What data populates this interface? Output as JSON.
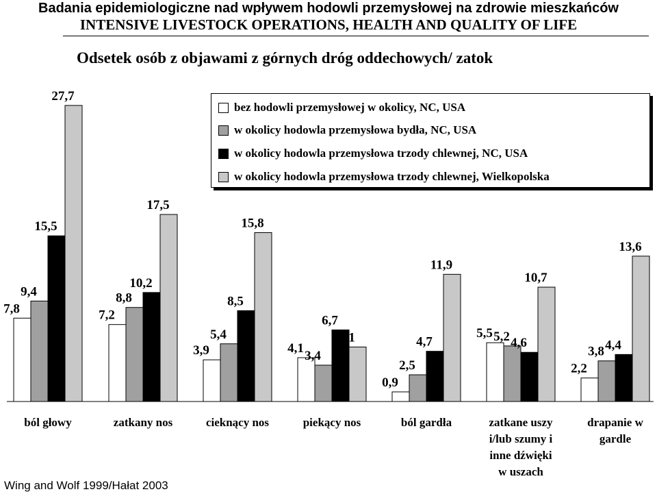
{
  "header": {
    "line1": "Badania epidemiologiczne nad wpływem hodowli przemysłowej na zdrowie mieszkańców",
    "line2": "INTENSIVE LIVESTOCK OPERATIONS, HEALTH AND QUALITY OF LIFE"
  },
  "source": "Wing and Wolf 1999/Hałat 2003",
  "chart_data": {
    "type": "bar",
    "title": "Odsetek osób z objawami z górnych dróg oddechowych/ zatok",
    "ylim": [
      0,
      30
    ],
    "grid": false,
    "legend_position": "top-right",
    "categories": [
      "ból głowy",
      "zatkany nos",
      "cieknący nos",
      "piekący nos",
      "ból gardła",
      "zatkane uszy i/lub szumy i inne dźwięki w uszach",
      "drapanie w gardle"
    ],
    "category_lines": [
      [
        "ból głowy"
      ],
      [
        "zatkany nos"
      ],
      [
        "cieknący nos"
      ],
      [
        "piekący nos"
      ],
      [
        "ból gardła"
      ],
      [
        "zatkane uszy",
        "i/lub szumy i",
        "inne dźwięki",
        "w uszach"
      ],
      [
        "drapanie w",
        "gardle"
      ]
    ],
    "series": [
      {
        "name": "bez hodowli przemysłowej w okolicy, NC, USA",
        "color": "#ffffff",
        "values": [
          7.8,
          7.2,
          3.9,
          4.1,
          0.9,
          5.5,
          2.2
        ]
      },
      {
        "name": "w okolicy hodowla przemysłowa bydła, NC, USA",
        "color": "#a0a0a0",
        "values": [
          9.4,
          8.8,
          5.4,
          3.4,
          2.5,
          5.2,
          3.8
        ]
      },
      {
        "name": "w okolicy hodowla przemysłowa trzody chlewnej, NC, USA",
        "color": "#000000",
        "values": [
          15.5,
          10.2,
          8.5,
          6.7,
          4.7,
          4.6,
          4.4
        ]
      },
      {
        "name": "w okolicy hodowla przemysłowa trzody chlewnej, Wielkopolska",
        "color": "#c8c8c8",
        "values": [
          27.7,
          17.5,
          15.8,
          5.1,
          11.9,
          10.7,
          13.6
        ]
      }
    ],
    "value_labels": [
      [
        "7,8",
        "9,4",
        "15,5",
        "27,7"
      ],
      [
        "7,2",
        "8,8",
        "10,2",
        "17,5"
      ],
      [
        "3,9",
        "5,4",
        "8,5",
        "15,8"
      ],
      [
        "4,1",
        "3,4",
        "6,7",
        "5,1"
      ],
      [
        "0,9",
        "2,5",
        "4,7",
        "11,9"
      ],
      [
        "5,5",
        "5,2",
        "4,6",
        "10,7"
      ],
      [
        "2,2",
        "3,8",
        "4,4",
        "13,6"
      ]
    ]
  }
}
